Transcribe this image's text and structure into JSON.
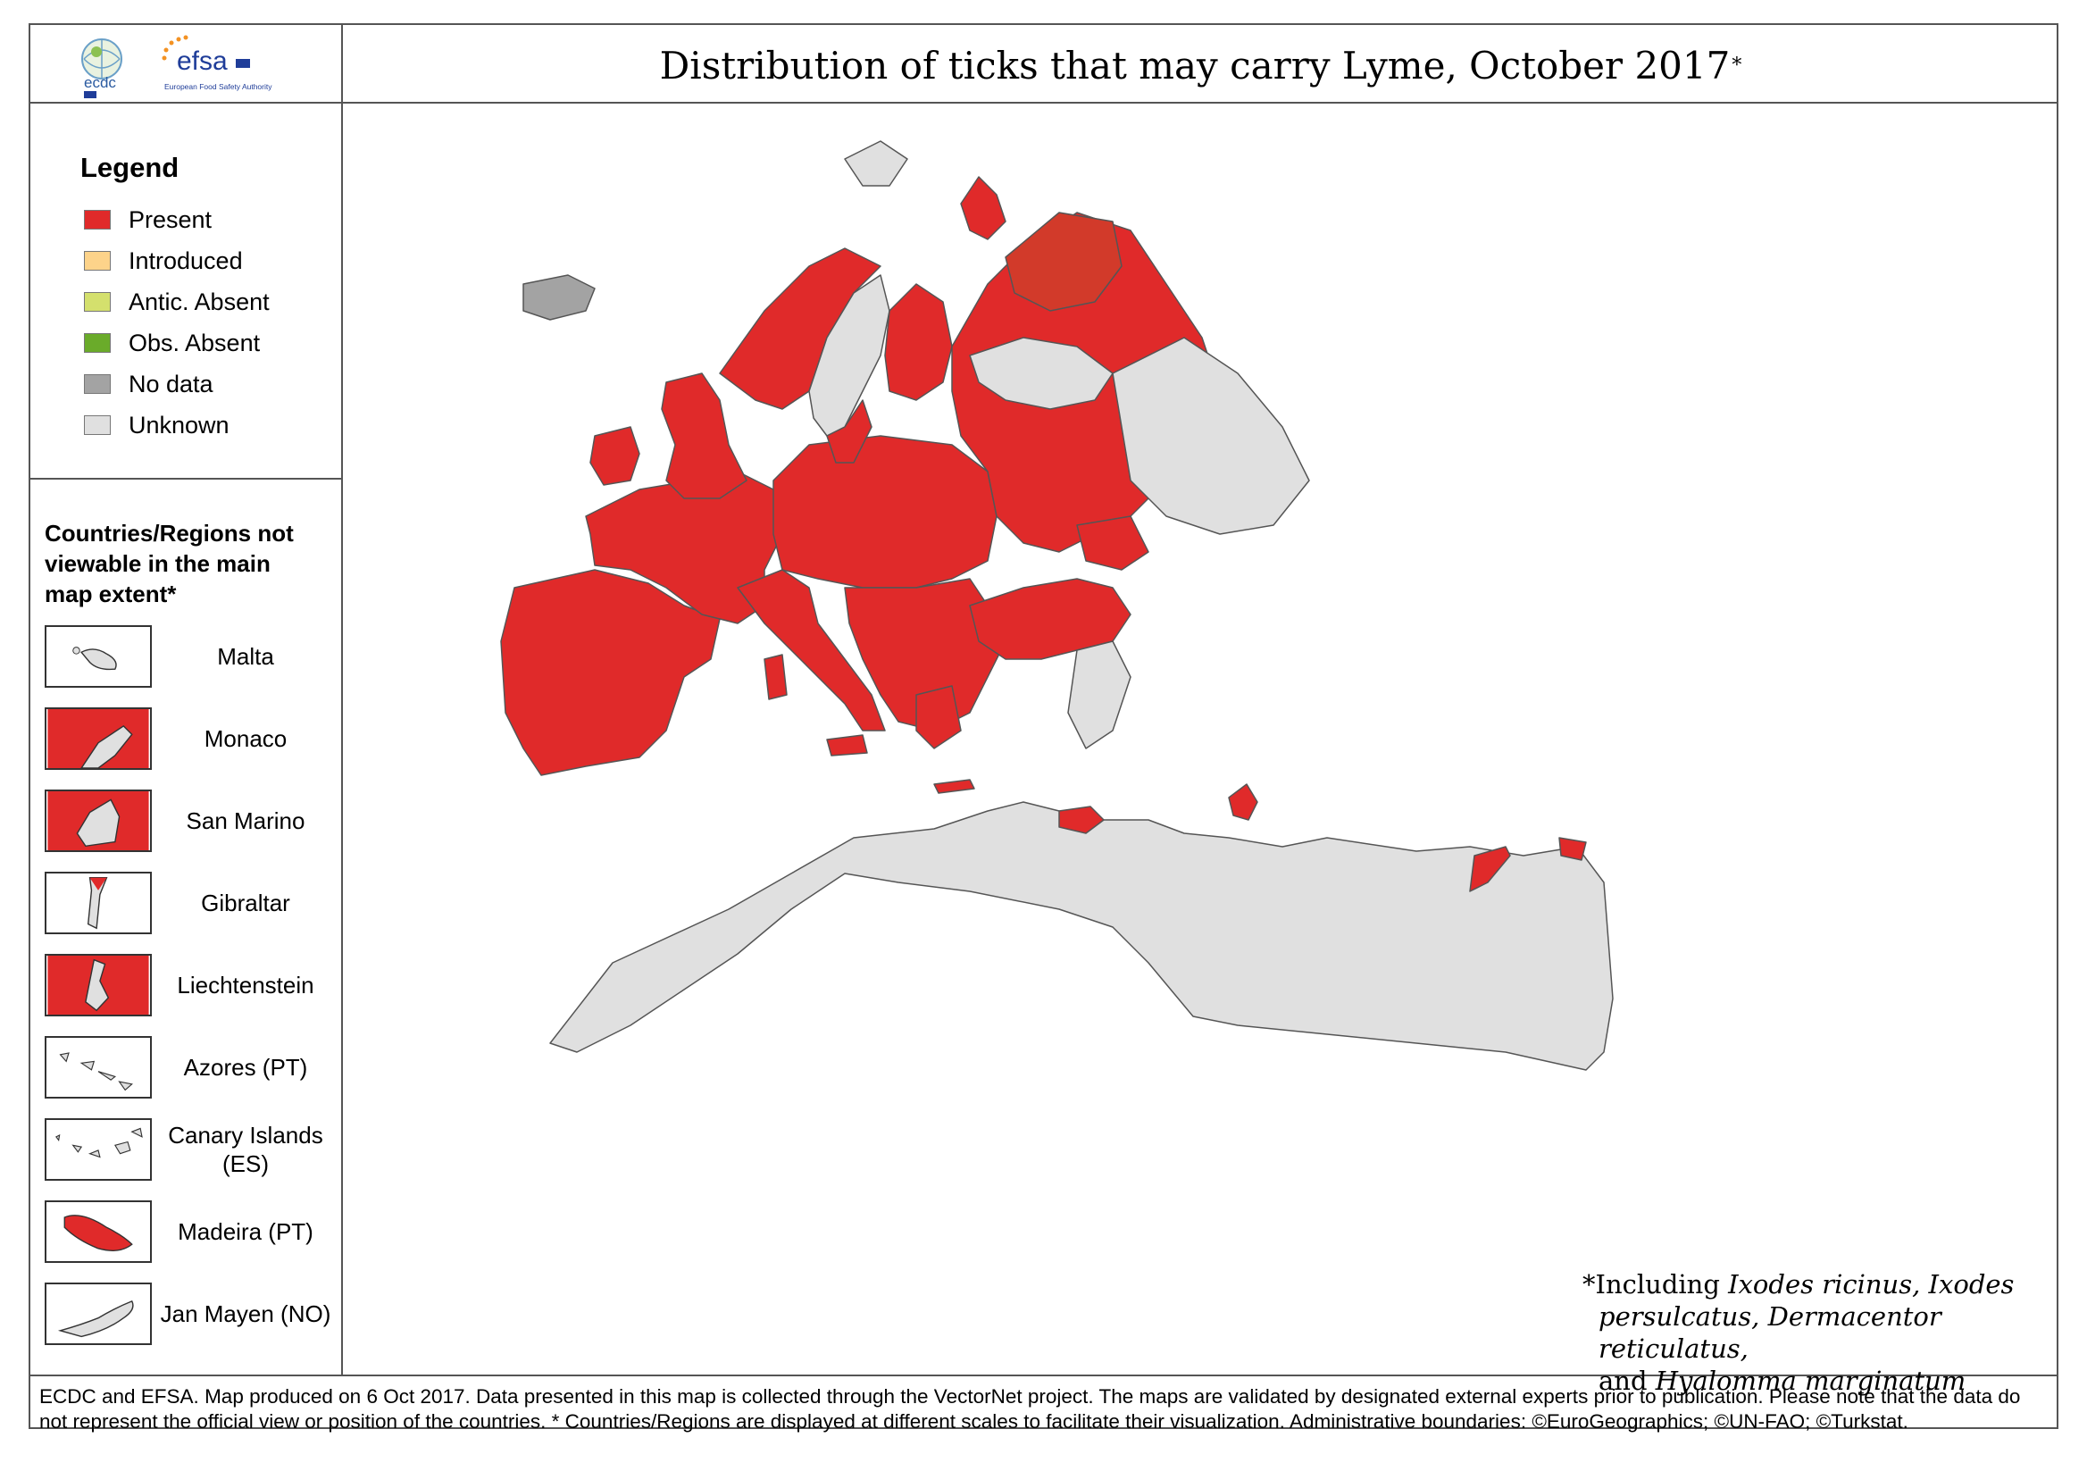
{
  "header": {
    "title": "Distribution of ticks that may carry Lyme, October 2017",
    "title_mark": "*",
    "logos": {
      "ecdc": "ecdc",
      "efsa": "efsa",
      "efsa_subtitle": "European Food Safety Authority"
    }
  },
  "legend": {
    "heading": "Legend",
    "items": [
      {
        "label": "Present",
        "color": "#e02a2a"
      },
      {
        "label": "Introduced",
        "color": "#fdd38a"
      },
      {
        "label": "Antic. Absent",
        "color": "#d4e06d"
      },
      {
        "label": "Obs. Absent",
        "color": "#6aab2a"
      },
      {
        "label": "No data",
        "color": "#a3a3a3"
      },
      {
        "label": "Unknown",
        "color": "#e0e0e0"
      }
    ]
  },
  "insets": {
    "heading": "Countries/Regions not viewable in the main map extent*",
    "items": [
      {
        "label": "Malta",
        "status": "Unknown",
        "icon": "malta-shape-icon"
      },
      {
        "label": "Monaco",
        "status": "Present",
        "icon": "monaco-shape-icon"
      },
      {
        "label": "San Marino",
        "status": "Present",
        "icon": "san-marino-shape-icon"
      },
      {
        "label": "Gibraltar",
        "status": "Unknown",
        "icon": "gibraltar-shape-icon"
      },
      {
        "label": "Liechtenstein",
        "status": "Present",
        "icon": "liechtenstein-shape-icon"
      },
      {
        "label": "Azores (PT)",
        "status": "Unknown",
        "icon": "azores-shape-icon"
      },
      {
        "label": "Canary Islands (ES)",
        "status": "Unknown",
        "icon": "canary-islands-shape-icon"
      },
      {
        "label": "Madeira (PT)",
        "status": "Present",
        "icon": "madeira-shape-icon"
      },
      {
        "label": "Jan Mayen (NO)",
        "status": "Unknown",
        "icon": "jan-mayen-shape-icon"
      }
    ]
  },
  "map": {
    "status_colors": {
      "present": "#e02a2a",
      "present_dark": "#d23a2a",
      "unknown": "#e0e0e0",
      "no_data": "#a3a3a3",
      "border": "#555555"
    }
  },
  "note": {
    "line1_prefix": "*Including ",
    "line1_italic": "Ixodes ricinus, Ixodes",
    "line2_italic": "persulcatus, Dermacentor reticulatus,",
    "line3_prefix": "and ",
    "line3_italic": "Hyalomma marginatum"
  },
  "footer": {
    "text": "ECDC and EFSA. Map produced on 6 Oct 2017. Data presented in this map is collected through the VectorNet project. The maps are validated by designated external experts prior to publication. Please note that the data do not represent the official view or position of the countries. * Countries/Regions are displayed at different scales to facilitate their visualization. Administrative boundaries: ©EuroGeographics; ©UN-FAO; ©Turkstat."
  }
}
